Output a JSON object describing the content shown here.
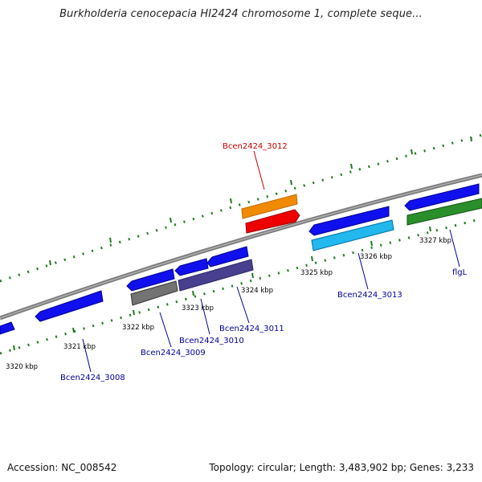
{
  "title": "Burkholderia cenocepacia HI2424 chromosome 1, complete seque...",
  "footer": {
    "accession": "Accession: NC_008542",
    "topology": "Topology: circular; Length: 3,483,902 bp; Genes: 3,233"
  },
  "colors": {
    "backbone": "#8a8a8a",
    "tick": "#1f7a1f",
    "label_blue": "#00009a",
    "label_red": "#cc0000"
  },
  "kbp_labels": [
    "3320 kbp",
    "3321 kbp",
    "3322 kbp",
    "3323 kbp",
    "3324 kbp",
    "3325 kbp",
    "3326 kbp",
    "3327 kbp"
  ],
  "gene_labels": [
    "Bcen2424_3012",
    "Bcen2424_3013",
    "flgL",
    "Bcen2424_3011",
    "Bcen2424_3010",
    "Bcen2424_3009",
    "Bcen2424_3008"
  ]
}
